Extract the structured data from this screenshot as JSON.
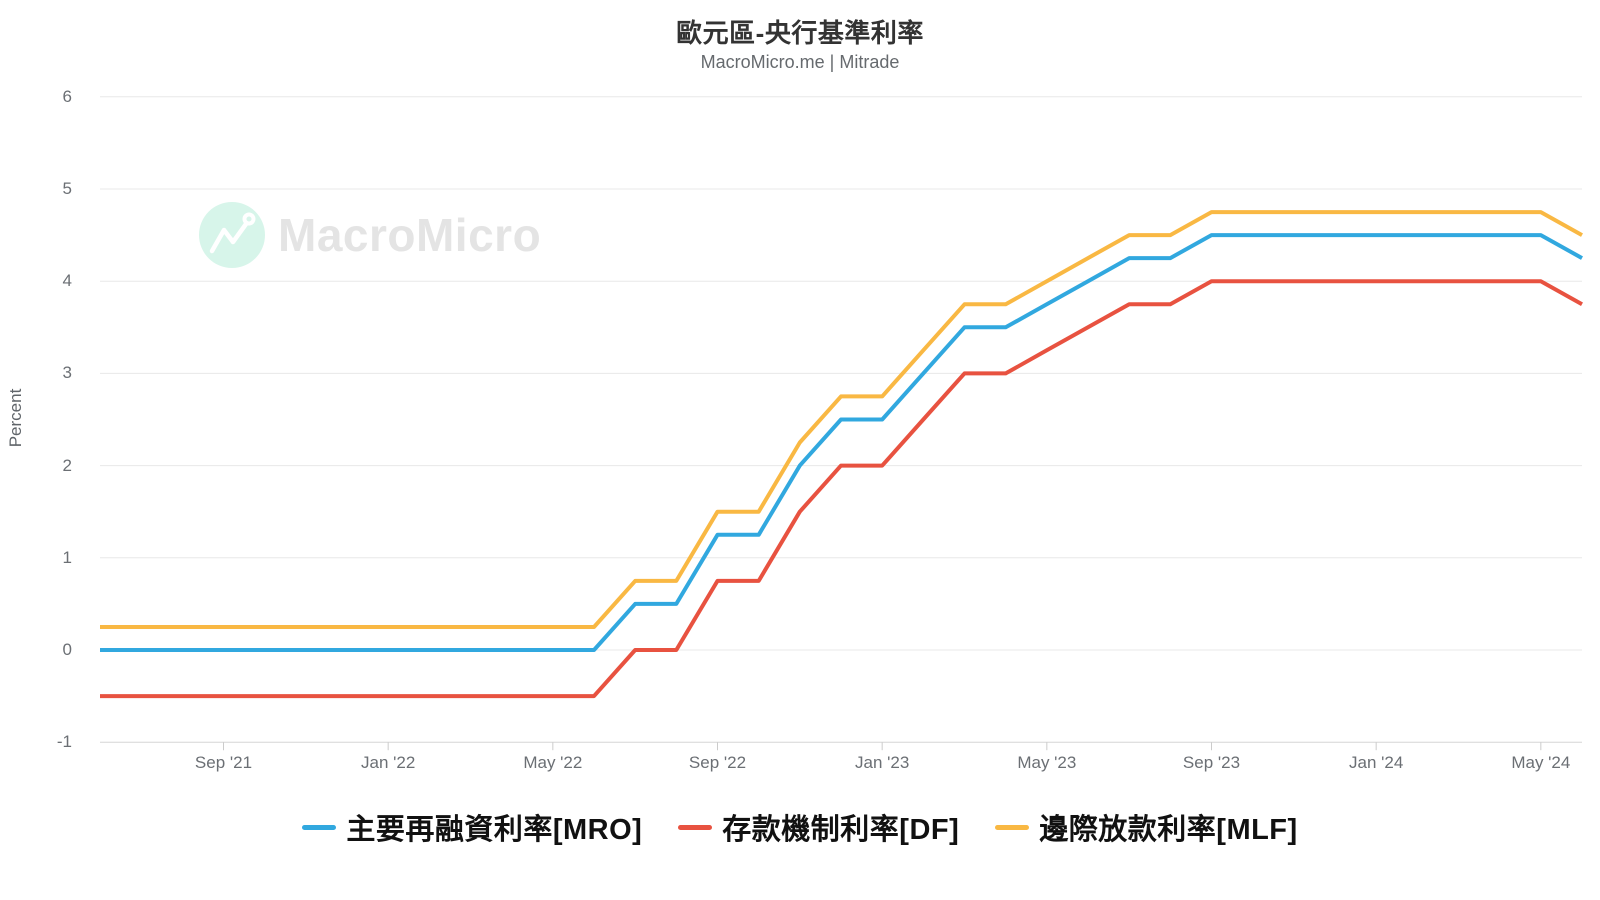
{
  "title": "歐元區-央行基準利率",
  "subtitle": "MacroMicro.me | Mitrade",
  "watermark": {
    "brand": "MacroMicro"
  },
  "y_axis": {
    "label": "Percent",
    "ticks": [
      6,
      5,
      4,
      3,
      2,
      1,
      0,
      -1
    ]
  },
  "x_axis": {
    "tick_labels": [
      "Sep '21",
      "Jan '22",
      "May '22",
      "Sep '22",
      "Jan '23",
      "May '23",
      "Sep '23",
      "Jan '24",
      "May '24"
    ],
    "tick_month_index": [
      3,
      7,
      11,
      15,
      19,
      23,
      27,
      31,
      35
    ]
  },
  "chart_data": {
    "type": "line",
    "title": "歐元區-央行基準利率",
    "subtitle": "MacroMicro.me | Mitrade",
    "ylabel": "Percent",
    "ylim": [
      -1,
      6
    ],
    "grid": "horizontal",
    "legend_position": "bottom",
    "x": [
      "2021-06",
      "2021-07",
      "2021-08",
      "2021-09",
      "2021-10",
      "2021-11",
      "2021-12",
      "2022-01",
      "2022-02",
      "2022-03",
      "2022-04",
      "2022-05",
      "2022-06",
      "2022-07",
      "2022-08",
      "2022-09",
      "2022-10",
      "2022-11",
      "2022-12",
      "2023-01",
      "2023-02",
      "2023-03",
      "2023-04",
      "2023-05",
      "2023-06",
      "2023-07",
      "2023-08",
      "2023-09",
      "2023-10",
      "2023-11",
      "2023-12",
      "2024-01",
      "2024-02",
      "2024-03",
      "2024-04",
      "2024-05",
      "2024-06"
    ],
    "series": [
      {
        "key": "mro",
        "name": "主要再融資利率[MRO]",
        "color": "#31a8df",
        "values": [
          0,
          0,
          0,
          0,
          0,
          0,
          0,
          0,
          0,
          0,
          0,
          0,
          0,
          0.5,
          0.5,
          1.25,
          1.25,
          2,
          2.5,
          2.5,
          3,
          3.5,
          3.5,
          3.75,
          4,
          4.25,
          4.25,
          4.5,
          4.5,
          4.5,
          4.5,
          4.5,
          4.5,
          4.5,
          4.5,
          4.5,
          4.25
        ]
      },
      {
        "key": "df",
        "name": "存款機制利率[DF]",
        "color": "#e85240",
        "values": [
          -0.5,
          -0.5,
          -0.5,
          -0.5,
          -0.5,
          -0.5,
          -0.5,
          -0.5,
          -0.5,
          -0.5,
          -0.5,
          -0.5,
          -0.5,
          0,
          0,
          0.75,
          0.75,
          1.5,
          2,
          2,
          2.5,
          3,
          3,
          3.25,
          3.5,
          3.75,
          3.75,
          4,
          4,
          4,
          4,
          4,
          4,
          4,
          4,
          4,
          3.75
        ]
      },
      {
        "key": "mlf",
        "name": "邊際放款利率[MLF]",
        "color": "#f9b843",
        "values": [
          0.25,
          0.25,
          0.25,
          0.25,
          0.25,
          0.25,
          0.25,
          0.25,
          0.25,
          0.25,
          0.25,
          0.25,
          0.25,
          0.75,
          0.75,
          1.5,
          1.5,
          2.25,
          2.75,
          2.75,
          3.25,
          3.75,
          3.75,
          4,
          4.25,
          4.5,
          4.5,
          4.75,
          4.75,
          4.75,
          4.75,
          4.75,
          4.75,
          4.75,
          4.75,
          4.75,
          4.5
        ]
      }
    ]
  },
  "style_colors": {
    "gridline": "#e8e8e8",
    "axis_line": "#d6d6d6",
    "tick_mark": "#cccccc",
    "watermark_icon_bg": "#d7f5ea",
    "watermark_text": "#e4e4e4"
  }
}
